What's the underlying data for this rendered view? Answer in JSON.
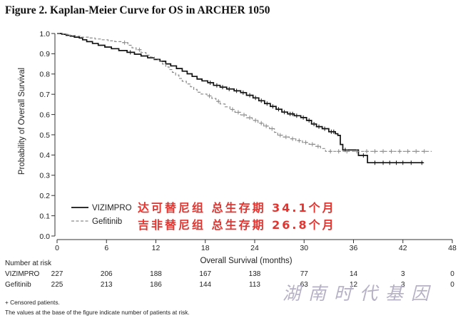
{
  "chart_data": {
    "type": "line",
    "step": true,
    "title": "Figure 2. Kaplan-Meier Curve for OS in ARCHER 1050",
    "xlabel": "Overall Survival (months)",
    "ylabel": "Probability of Overall Survival",
    "xlim": [
      0,
      48
    ],
    "ylim": [
      0,
      1
    ],
    "xticks": [
      0,
      6,
      12,
      18,
      24,
      30,
      36,
      42,
      48
    ],
    "ytick_labels": [
      "0.0",
      "0.1",
      "0.2",
      "0.3",
      "0.4",
      "0.5",
      "0.6",
      "0.7",
      "0.8",
      "0.9",
      "1.0"
    ],
    "grid": false,
    "legend_position": "lower-left",
    "series": [
      {
        "name": "VIZIMPRO",
        "color": "#111111",
        "line_style": "solid",
        "points": [
          [
            0,
            1.0
          ],
          [
            0.6,
            0.996
          ],
          [
            1.1,
            0.991
          ],
          [
            1.6,
            0.987
          ],
          [
            2.1,
            0.982
          ],
          [
            2.7,
            0.978
          ],
          [
            3.1,
            0.969
          ],
          [
            3.6,
            0.96
          ],
          [
            4.3,
            0.951
          ],
          [
            5.0,
            0.942
          ],
          [
            5.8,
            0.933
          ],
          [
            6.6,
            0.925
          ],
          [
            7.5,
            0.916
          ],
          [
            8.5,
            0.907
          ],
          [
            9.4,
            0.898
          ],
          [
            10.2,
            0.889
          ],
          [
            11.0,
            0.88
          ],
          [
            11.8,
            0.872
          ],
          [
            12.5,
            0.863
          ],
          [
            13.2,
            0.85
          ],
          [
            13.8,
            0.84
          ],
          [
            14.5,
            0.827
          ],
          [
            15.2,
            0.814
          ],
          [
            15.8,
            0.801
          ],
          [
            16.4,
            0.788
          ],
          [
            17.0,
            0.775
          ],
          [
            17.6,
            0.766
          ],
          [
            18.3,
            0.757
          ],
          [
            19.0,
            0.744
          ],
          [
            19.8,
            0.735
          ],
          [
            20.6,
            0.726
          ],
          [
            21.5,
            0.717
          ],
          [
            22.3,
            0.708
          ],
          [
            23.0,
            0.695
          ],
          [
            23.8,
            0.682
          ],
          [
            24.5,
            0.668
          ],
          [
            25.2,
            0.654
          ],
          [
            25.9,
            0.64
          ],
          [
            26.6,
            0.626
          ],
          [
            27.3,
            0.612
          ],
          [
            28.0,
            0.603
          ],
          [
            28.8,
            0.594
          ],
          [
            29.6,
            0.585
          ],
          [
            30.3,
            0.571
          ],
          [
            30.9,
            0.553
          ],
          [
            31.5,
            0.54
          ],
          [
            32.2,
            0.53
          ],
          [
            33.0,
            0.515
          ],
          [
            33.8,
            0.505
          ],
          [
            34.1,
            0.497
          ],
          [
            34.4,
            0.452
          ],
          [
            34.7,
            0.425
          ],
          [
            36.6,
            0.398
          ],
          [
            37.7,
            0.362
          ]
        ],
        "end": 44.5,
        "censored": [
          8.9,
          18.6,
          19.4,
          20.1,
          20.9,
          21.8,
          22.6,
          23.4,
          24.1,
          24.8,
          25.5,
          26.2,
          26.9,
          27.6,
          28.3,
          28.6,
          29.1,
          29.9,
          30.6,
          31.2,
          31.8,
          32.5,
          33.3,
          33.6,
          35.0,
          37.2,
          38.6,
          39.6,
          40.4,
          41.2,
          42.0,
          43.0,
          44.3
        ]
      },
      {
        "name": "Gefitinib",
        "color": "#8a8a8a",
        "line_style": "dashed",
        "points": [
          [
            0,
            1.0
          ],
          [
            0.7,
            0.996
          ],
          [
            1.4,
            0.991
          ],
          [
            2.2,
            0.987
          ],
          [
            3.0,
            0.982
          ],
          [
            3.8,
            0.978
          ],
          [
            4.6,
            0.973
          ],
          [
            5.4,
            0.969
          ],
          [
            6.2,
            0.964
          ],
          [
            7.0,
            0.96
          ],
          [
            7.9,
            0.955
          ],
          [
            8.6,
            0.942
          ],
          [
            9.1,
            0.929
          ],
          [
            9.6,
            0.92
          ],
          [
            10.2,
            0.906
          ],
          [
            10.8,
            0.893
          ],
          [
            11.3,
            0.884
          ],
          [
            11.8,
            0.875
          ],
          [
            12.3,
            0.862
          ],
          [
            12.8,
            0.849
          ],
          [
            13.2,
            0.835
          ],
          [
            13.6,
            0.822
          ],
          [
            14.0,
            0.808
          ],
          [
            14.4,
            0.795
          ],
          [
            14.8,
            0.778
          ],
          [
            15.2,
            0.764
          ],
          [
            15.7,
            0.751
          ],
          [
            16.2,
            0.737
          ],
          [
            16.6,
            0.724
          ],
          [
            17.0,
            0.71
          ],
          [
            17.5,
            0.701
          ],
          [
            18.2,
            0.692
          ],
          [
            18.8,
            0.679
          ],
          [
            19.3,
            0.665
          ],
          [
            19.8,
            0.652
          ],
          [
            20.4,
            0.638
          ],
          [
            21.0,
            0.625
          ],
          [
            21.6,
            0.611
          ],
          [
            22.3,
            0.598
          ],
          [
            23.0,
            0.584
          ],
          [
            23.7,
            0.571
          ],
          [
            24.4,
            0.557
          ],
          [
            25.1,
            0.543
          ],
          [
            25.8,
            0.53
          ],
          [
            26.4,
            0.512
          ],
          [
            26.8,
            0.498
          ],
          [
            27.4,
            0.489
          ],
          [
            28.2,
            0.48
          ],
          [
            29.0,
            0.471
          ],
          [
            29.8,
            0.462
          ],
          [
            30.6,
            0.453
          ],
          [
            31.4,
            0.443
          ],
          [
            32.0,
            0.432
          ],
          [
            32.6,
            0.418
          ]
        ],
        "end": 45.5,
        "censored": [
          8.2,
          10.0,
          18.5,
          19.6,
          21.3,
          22.0,
          22.7,
          23.4,
          24.1,
          24.8,
          25.4,
          26.1,
          27.1,
          27.8,
          28.6,
          29.4,
          30.2,
          31.0,
          31.7,
          33.2,
          34.2,
          35.2,
          36.4,
          37.6,
          38.6,
          39.6,
          40.6,
          41.6,
          42.6,
          43.6,
          44.6
        ]
      }
    ],
    "annotations": [
      {
        "text": "达可替尼组 总生存期 34.1个月",
        "color": "#e3342f"
      },
      {
        "text": "吉非替尼组 总生存期 26.8个月",
        "color": "#e3342f"
      }
    ],
    "risk_table": {
      "title": "Number at risk",
      "rows": [
        {
          "label": "VIZIMPRO",
          "values": [
            227,
            206,
            188,
            167,
            138,
            77,
            14,
            3,
            0
          ]
        },
        {
          "label": "Gefitinib",
          "values": [
            225,
            213,
            186,
            144,
            113,
            63,
            12,
            3,
            0
          ]
        }
      ]
    }
  },
  "footnotes": {
    "censor_note": "+ Censored patients.",
    "risk_note": "The values at the base of the figure indicate number of patients at risk."
  },
  "watermark": {
    "text": "湖南时代基因",
    "color": "#b7b1c6"
  }
}
